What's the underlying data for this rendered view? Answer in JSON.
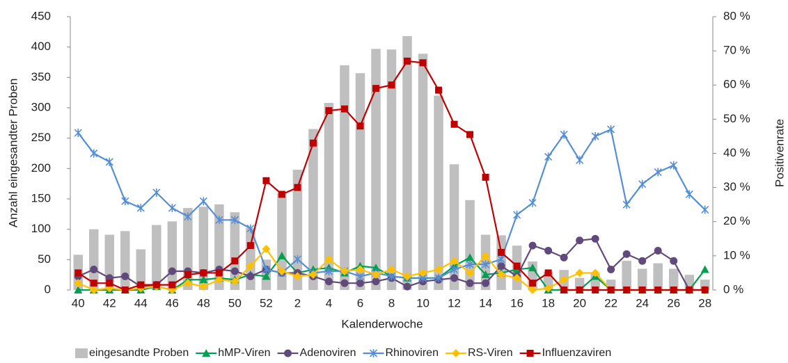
{
  "chart_data": {
    "type": "bar",
    "x_label": "Kalenderwoche",
    "y_label": "Anzahl eingesandter Proben",
    "y2_label": "Positivenrate",
    "categories": [
      "40",
      null,
      "42",
      null,
      "44",
      null,
      "46",
      null,
      "48",
      null,
      "50",
      null,
      "52",
      null,
      "2",
      null,
      "4",
      null,
      "6",
      null,
      "8",
      null,
      "10",
      null,
      "12",
      null,
      "14",
      null,
      "16",
      null,
      "18",
      null,
      "20",
      null,
      "22",
      null,
      "24",
      null,
      "26",
      null,
      "28"
    ],
    "ylim": [
      0,
      450
    ],
    "yticks": [
      0,
      50,
      100,
      150,
      200,
      250,
      300,
      350,
      400,
      450
    ],
    "y2lim": [
      0,
      80
    ],
    "y2ticks": [
      {
        "value": 0,
        "label": "0 %"
      },
      {
        "value": 10,
        "label": "10 %"
      },
      {
        "value": 20,
        "label": "20 %"
      },
      {
        "value": 30,
        "label": "30 %"
      },
      {
        "value": 40,
        "label": "40 %"
      },
      {
        "value": 50,
        "label": "50 %"
      },
      {
        "value": 60,
        "label": "60 %"
      },
      {
        "value": 70,
        "label": "70 %"
      },
      {
        "value": 80,
        "label": "80 %"
      }
    ],
    "legend": "bottom",
    "series": [
      {
        "name": "eingesandte Proben",
        "type": "bar",
        "color": "#bfbfbf",
        "values": [
          58,
          100,
          91,
          97,
          67,
          107,
          113,
          135,
          137,
          141,
          128,
          102,
          50,
          160,
          198,
          265,
          308,
          370,
          357,
          397,
          396,
          418,
          389,
          320,
          207,
          148,
          91,
          90,
          73,
          47,
          30,
          33,
          20,
          27,
          17,
          48,
          35,
          44,
          35,
          25,
          17
        ]
      },
      {
        "name": "hMP-Viren",
        "type": "line",
        "axis": "y2",
        "color": "#00a050",
        "marker": "triangle",
        "values": [
          0,
          0,
          0,
          0,
          0,
          1,
          0,
          3,
          3,
          3.5,
          3,
          4.5,
          4,
          10,
          5,
          6,
          6.5,
          5,
          7,
          6.5,
          4,
          3.5,
          3.5,
          3.5,
          7,
          9.5,
          4.5,
          5,
          6,
          6.5,
          0,
          0,
          0,
          4,
          0,
          0,
          0,
          0,
          0,
          0,
          6
        ]
      },
      {
        "name": "Adenoviren",
        "type": "line",
        "axis": "y2",
        "color": "#604a7b",
        "marker": "circle",
        "values": [
          4,
          6,
          3.5,
          4,
          1,
          1.5,
          5.5,
          5.5,
          5,
          6,
          5.5,
          4,
          6,
          5,
          5,
          4,
          2.5,
          2,
          2,
          2.5,
          3.5,
          1,
          2.5,
          3,
          3.5,
          2,
          2,
          7,
          4,
          13,
          11.5,
          9.5,
          14.5,
          15,
          6,
          10.5,
          8.5,
          11.5,
          8.5,
          0,
          0
        ]
      },
      {
        "name": "Rhinoviren",
        "type": "line",
        "axis": "y2",
        "color": "#558ed5",
        "marker": "star",
        "values": [
          46,
          40,
          37.5,
          26,
          24,
          28.5,
          24,
          21.5,
          26,
          20.5,
          20.5,
          18,
          6,
          5,
          9,
          5,
          5.5,
          5.5,
          4,
          5,
          4,
          3.5,
          3.5,
          3.5,
          6,
          7.5,
          7.5,
          9,
          22,
          25.5,
          39,
          45.5,
          38,
          45,
          47,
          25,
          31,
          34.5,
          36.5,
          28,
          23.5
        ]
      },
      {
        "name": "RS-Viren",
        "type": "line",
        "axis": "y2",
        "color": "#ffc000",
        "marker": "diamond",
        "values": [
          2,
          0,
          0.5,
          0,
          0.5,
          1,
          0,
          2,
          1,
          3,
          2.5,
          7,
          12,
          5.5,
          4,
          4.5,
          9,
          5.5,
          6,
          4.5,
          6,
          4,
          5,
          6,
          8.5,
          5,
          10,
          4.5,
          3.5,
          0,
          0.5,
          3,
          5,
          5,
          0,
          0,
          0,
          0,
          0,
          0,
          0
        ]
      },
      {
        "name": "Influenzaviren",
        "type": "line",
        "axis": "y2",
        "color": "#c00000",
        "marker": "square",
        "values": [
          5,
          2,
          2,
          0,
          1.5,
          1.5,
          1.5,
          4.5,
          5,
          5,
          8.5,
          13,
          32,
          28,
          30,
          43,
          52.5,
          53,
          48,
          59,
          60,
          67,
          66.5,
          58.5,
          48.5,
          45.5,
          33,
          11,
          7,
          2,
          5,
          0,
          0,
          0,
          0,
          0,
          0,
          0,
          0,
          0,
          0
        ]
      }
    ]
  }
}
